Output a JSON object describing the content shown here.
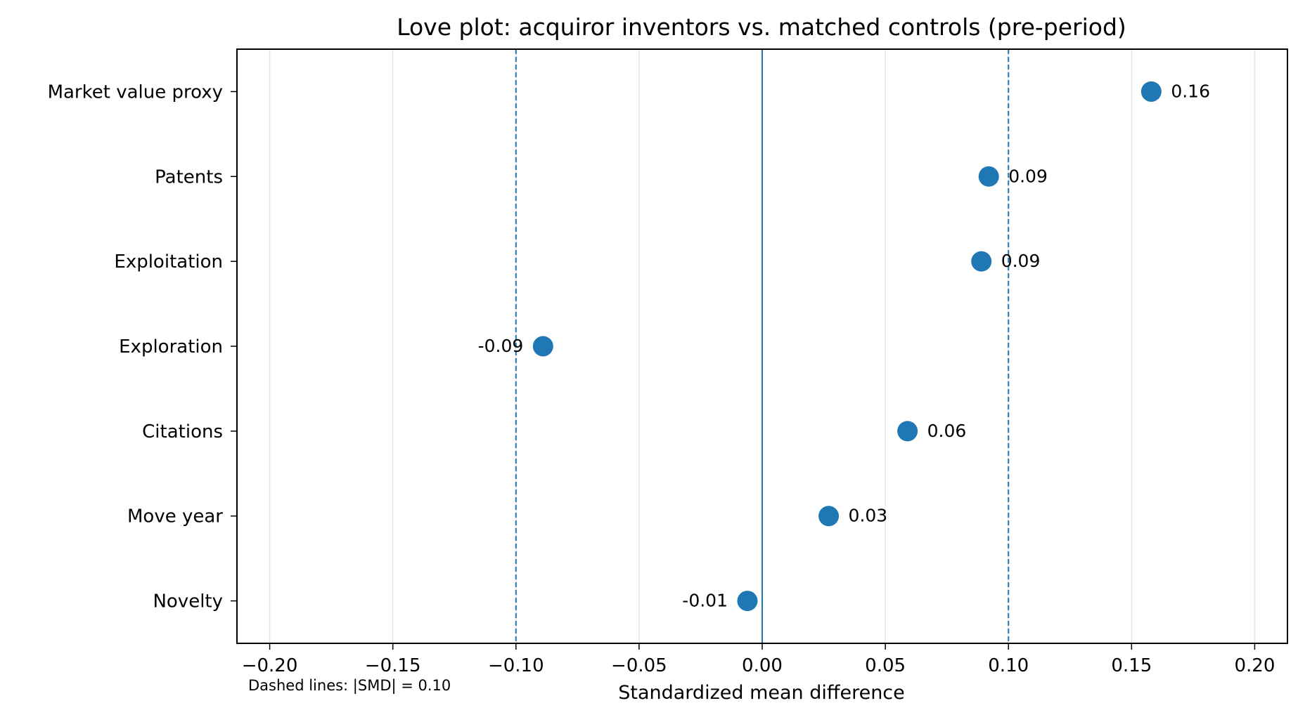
{
  "chart_data": {
    "type": "scatter",
    "title": "Love plot: acquiror inventors vs. matched controls (pre-period)",
    "xlabel": "Standardized mean difference",
    "ylabel": "",
    "xlim": [
      -0.2133,
      0.2133
    ],
    "xticks": [
      -0.2,
      -0.15,
      -0.1,
      -0.05,
      0.0,
      0.05,
      0.1,
      0.15,
      0.2
    ],
    "xtick_labels": [
      "−0.20",
      "−0.15",
      "−0.10",
      "−0.05",
      "0.00",
      "0.05",
      "0.10",
      "0.15",
      "0.20"
    ],
    "grid": "vertical",
    "threshold_lines": [
      -0.1,
      0.1
    ],
    "zero_line": 0,
    "annotation": "Dashed lines: |SMD| = 0.10",
    "color": "#1f77b4",
    "series": [
      {
        "categories": [
          "Market value proxy",
          "Patents",
          "Exploitation",
          "Exploration",
          "Citations",
          "Move year",
          "Novelty"
        ],
        "values": [
          0.158,
          0.092,
          0.089,
          -0.089,
          0.059,
          0.027,
          -0.006
        ],
        "labels": [
          "0.16",
          "0.09",
          "0.09",
          "-0.09",
          "0.06",
          "0.03",
          "-0.01"
        ]
      }
    ]
  }
}
